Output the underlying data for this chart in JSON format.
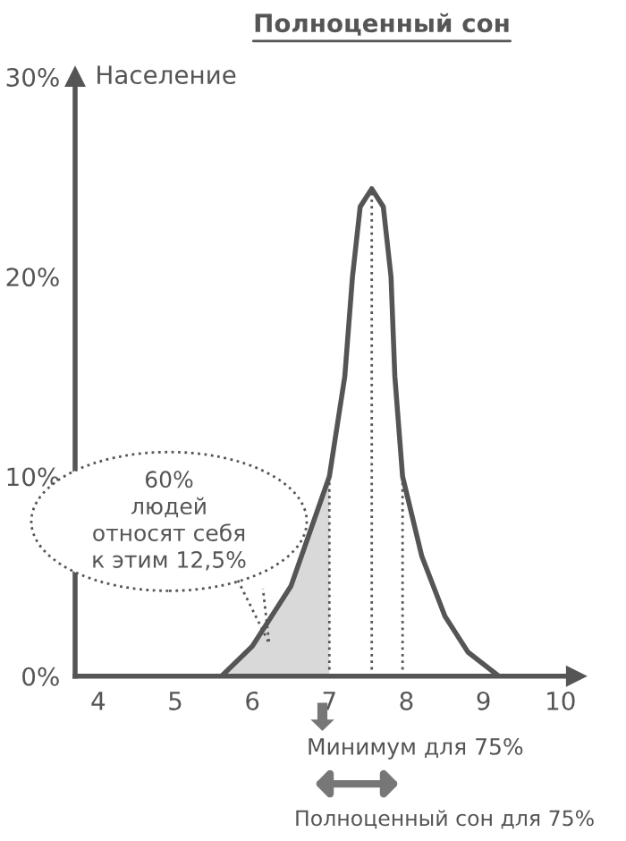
{
  "chart_data": {
    "type": "line",
    "title": "Полноценный сон",
    "ylabel": "Население",
    "xlim": [
      3.7,
      10.2
    ],
    "xticks": [
      4,
      5,
      6,
      7,
      8,
      9,
      10
    ],
    "ylim": [
      0,
      30
    ],
    "yticks": [
      {
        "value": 0,
        "label": "0%"
      },
      {
        "value": 10,
        "label": "10%"
      },
      {
        "value": 20,
        "label": "20%"
      },
      {
        "value": 30,
        "label": "30%"
      }
    ],
    "grid": false,
    "legend": false,
    "series": [
      {
        "type": "area",
        "color": "#d9d9d9",
        "x": [
          5.6,
          6.0,
          6.5,
          7.0
        ],
        "values": [
          0,
          1.5,
          4.5,
          10
        ]
      },
      {
        "color": "#555555",
        "line_style": "solid",
        "x": [
          5.6,
          6.0,
          6.5,
          7.0,
          7.2,
          7.3,
          7.4,
          7.55,
          7.7,
          7.8,
          7.85,
          7.95,
          8.2,
          8.5,
          8.8,
          9.2
        ],
        "values": [
          0,
          1.5,
          4.5,
          10,
          15,
          20,
          23.5,
          24.4,
          23.5,
          20,
          15,
          10,
          6,
          3,
          1.2,
          0
        ]
      },
      {
        "type": "line",
        "color": "#555555",
        "line_style": "dotted",
        "x": [
          7.0,
          7.0
        ],
        "values": [
          0,
          10
        ]
      },
      {
        "type": "line",
        "color": "#555555",
        "line_style": "dotted",
        "x": [
          7.55,
          7.55
        ],
        "values": [
          0,
          24.4
        ]
      },
      {
        "type": "line",
        "color": "#555555",
        "line_style": "dotted",
        "x": [
          7.95,
          7.95
        ],
        "values": [
          0,
          10
        ]
      }
    ],
    "annotations": [
      "60%\nлюдей\nотносят себя\nк этим 12,5%",
      "Минимум для 75%",
      "Полноценный сон для 75%"
    ]
  }
}
